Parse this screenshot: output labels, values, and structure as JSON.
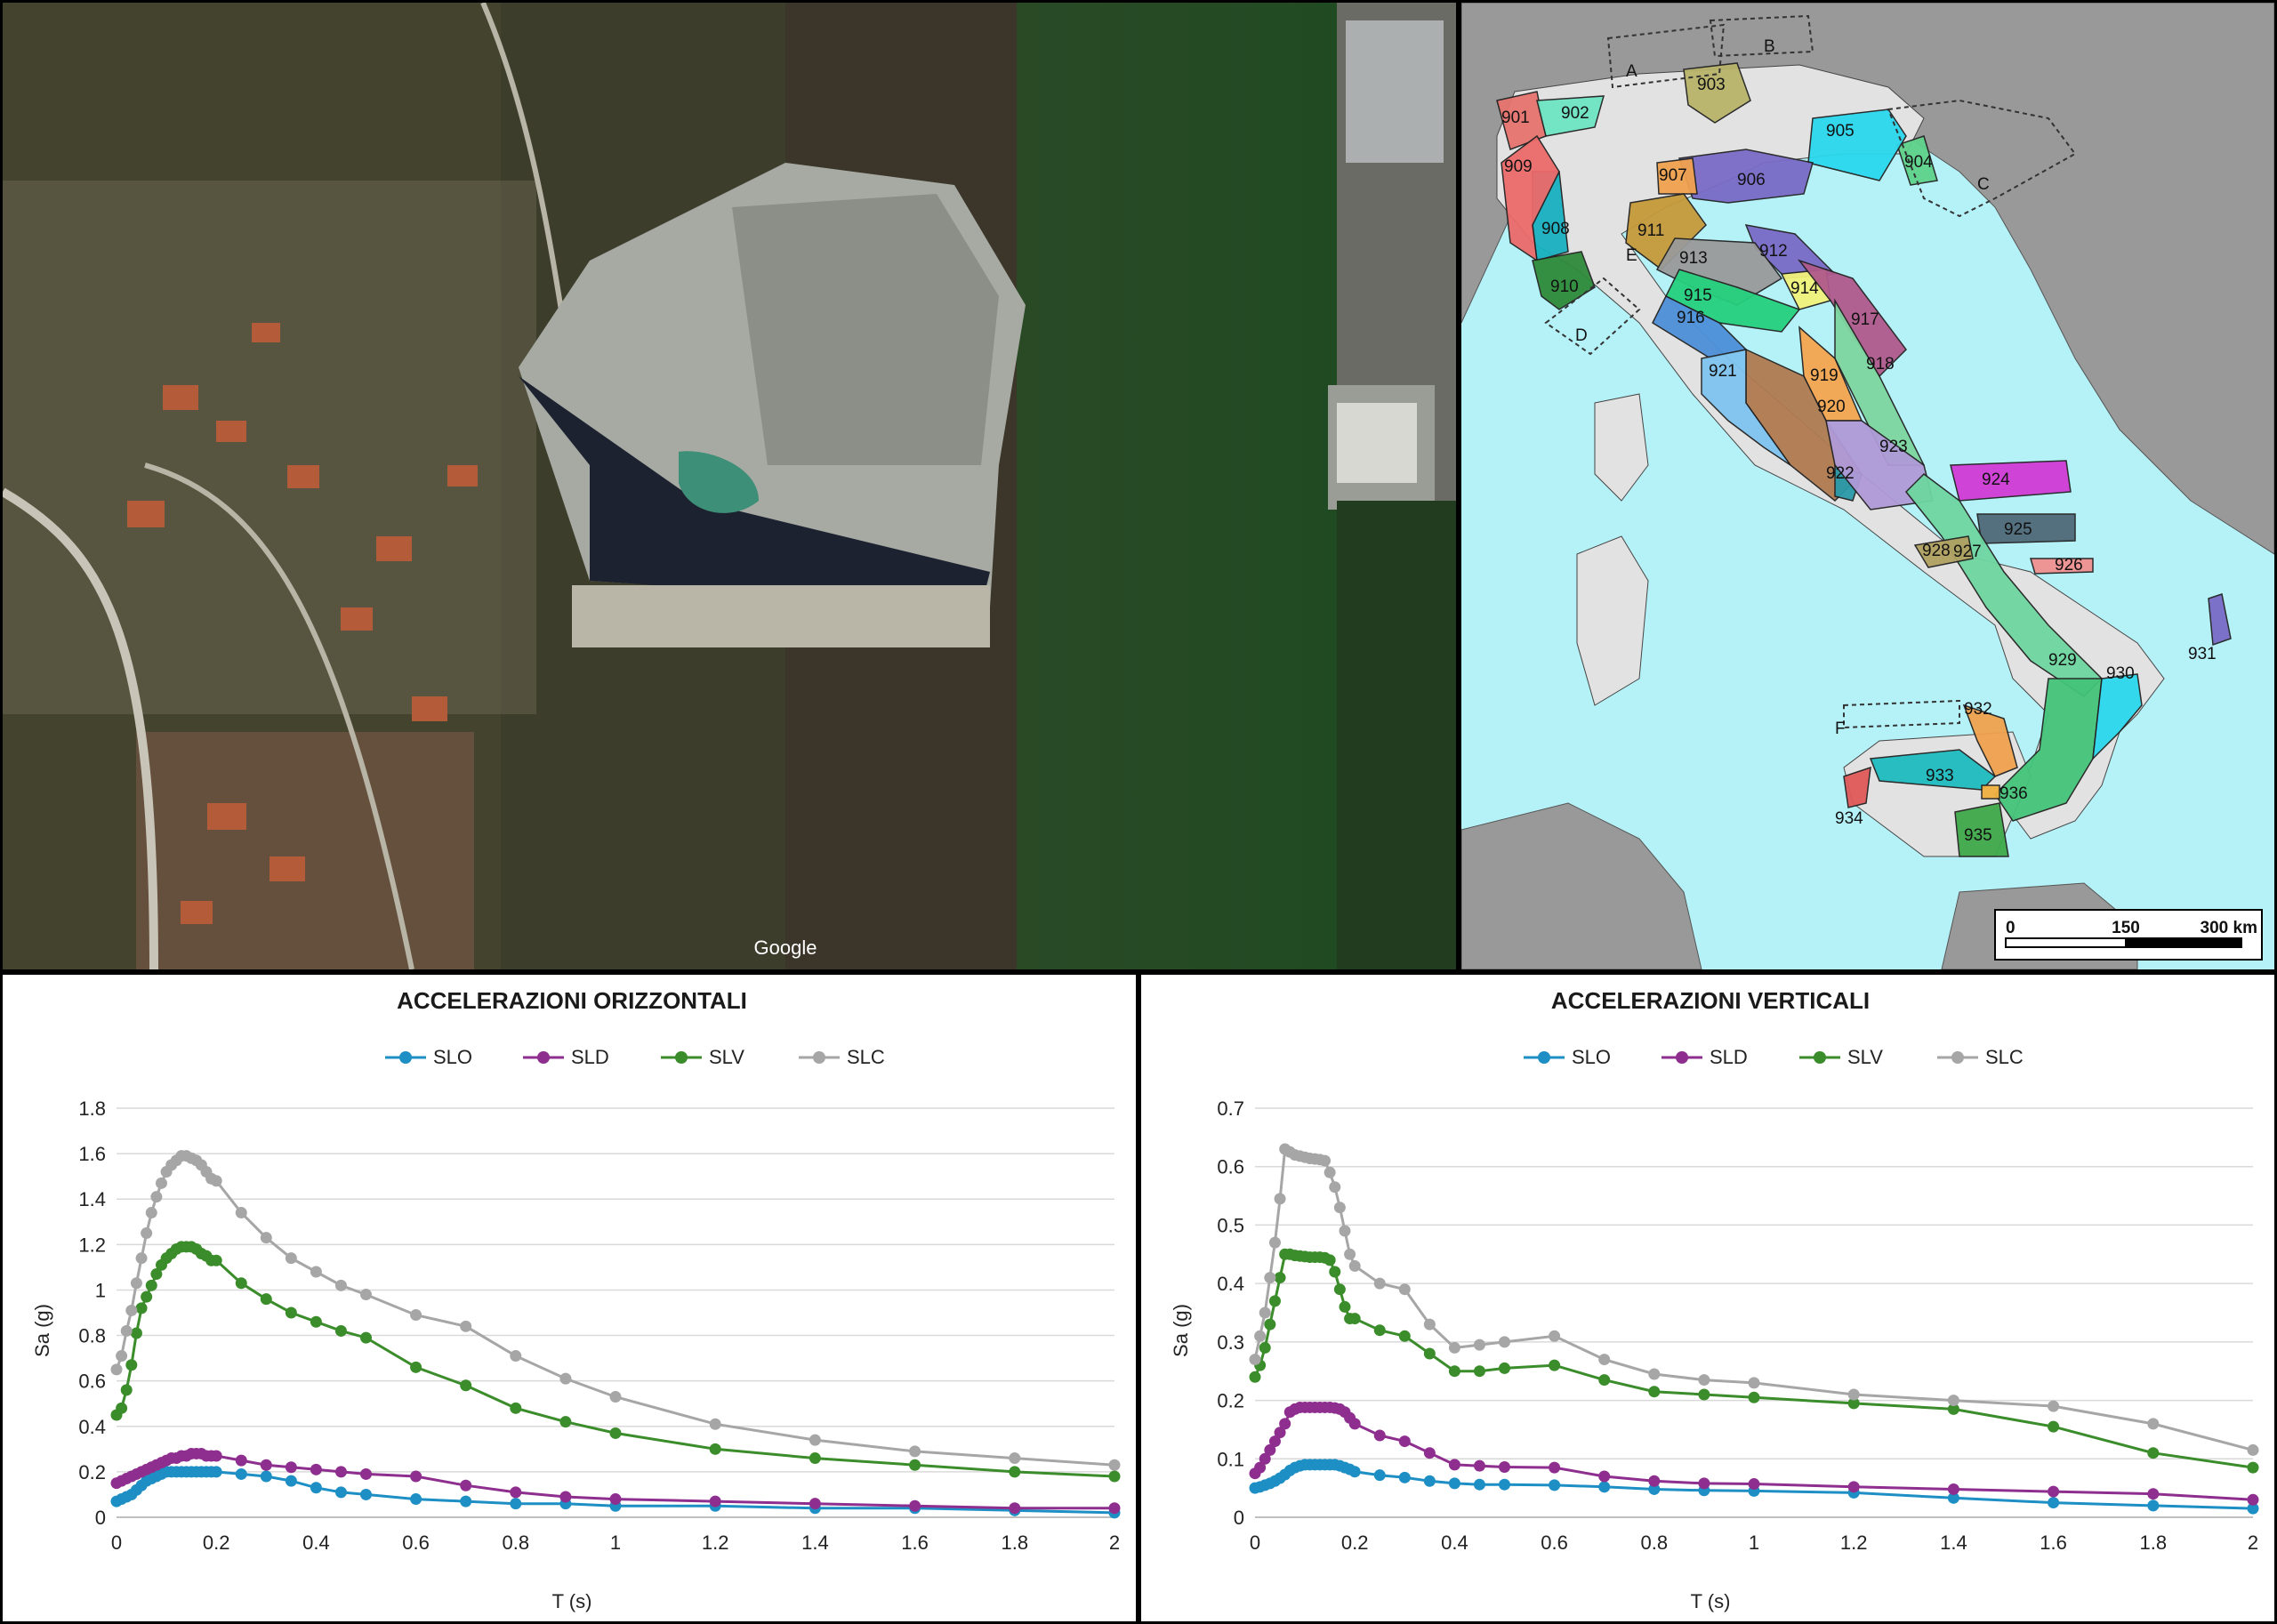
{
  "aerial": {
    "watermark": "Google"
  },
  "map": {
    "zones": [
      "901",
      "902",
      "903",
      "904",
      "905",
      "906",
      "907",
      "908",
      "909",
      "910",
      "911",
      "912",
      "913",
      "914",
      "915",
      "916",
      "917",
      "918",
      "919",
      "920",
      "921",
      "922",
      "923",
      "924",
      "925",
      "926",
      "927",
      "928",
      "929",
      "930",
      "931",
      "932",
      "933",
      "934",
      "935",
      "936"
    ],
    "zone_colors": {
      "901": "#e8746f",
      "902": "#6ee6c4",
      "903": "#b8b46a",
      "904": "#5fd38b",
      "905": "#2ad8ee",
      "906": "#7a6bc6",
      "907": "#f0a24e",
      "908": "#18b0c0",
      "909": "#ec6a6a",
      "910": "#2f8a3a",
      "911": "#c69a3a",
      "912": "#7a6bc6",
      "913": "#9a9a9a",
      "914": "#f2f27a",
      "915": "#26d07e",
      "916": "#4d8fd8",
      "917": "#b05a8c",
      "918": "#7fd6a0",
      "919": "#f5a650",
      "920": "#b07a50",
      "921": "#7ec4f0",
      "922": "#2a9aaa",
      "923": "#b09ad8",
      "924": "#d13ad6",
      "925": "#4f6a78",
      "926": "#f09090",
      "927": "#6fd6a0",
      "928": "#b0a060",
      "929": "#44c47a",
      "930": "#2ad8ee",
      "931": "#7a6bc6",
      "932": "#f0a24e",
      "933": "#1fbcc0",
      "934": "#e05a5a",
      "935": "#3faa4a",
      "936": "#f0b040"
    },
    "letter_labels": [
      "A",
      "B",
      "C",
      "D",
      "E",
      "F"
    ],
    "scale_bar": {
      "labels": [
        "0",
        "150",
        "300 km"
      ]
    },
    "colors": {
      "sea": "#b5f2f8",
      "land_italy": "#e2e2e2",
      "land_other": "#999999"
    }
  },
  "chart_data": [
    {
      "type": "line",
      "title": "ACCELERAZIONI ORIZZONTALI",
      "xlabel": "T (s)",
      "ylabel": "Sa (g)",
      "xlim": [
        0,
        2
      ],
      "ylim": [
        0,
        1.8
      ],
      "xticks": [
        "0",
        "0.2",
        "0.4",
        "0.6",
        "0.8",
        "1",
        "1.2",
        "1.4",
        "1.6",
        "1.8",
        "2"
      ],
      "yticks": [
        "0",
        "0.2",
        "0.4",
        "0.6",
        "0.8",
        "1",
        "1.2",
        "1.4",
        "1.6",
        "1.8"
      ],
      "grid": "horizontal",
      "legend": "top",
      "series": [
        {
          "name": "SLO",
          "color": "#1e8fc4",
          "x": [
            0,
            0.01,
            0.02,
            0.03,
            0.04,
            0.05,
            0.06,
            0.07,
            0.08,
            0.09,
            0.1,
            0.11,
            0.12,
            0.13,
            0.14,
            0.15,
            0.16,
            0.17,
            0.18,
            0.19,
            0.2,
            0.25,
            0.3,
            0.35,
            0.4,
            0.45,
            0.5,
            0.6,
            0.7,
            0.8,
            0.9,
            1,
            1.2,
            1.4,
            1.6,
            1.8,
            2
          ],
          "y": [
            0.07,
            0.08,
            0.09,
            0.1,
            0.12,
            0.14,
            0.16,
            0.17,
            0.18,
            0.19,
            0.2,
            0.2,
            0.2,
            0.2,
            0.2,
            0.2,
            0.2,
            0.2,
            0.2,
            0.2,
            0.2,
            0.19,
            0.18,
            0.16,
            0.13,
            0.11,
            0.1,
            0.08,
            0.07,
            0.06,
            0.06,
            0.05,
            0.05,
            0.04,
            0.04,
            0.03,
            0.02
          ]
        },
        {
          "name": "SLD",
          "color": "#8e2e8e",
          "x": [
            0,
            0.01,
            0.02,
            0.03,
            0.04,
            0.05,
            0.06,
            0.07,
            0.08,
            0.09,
            0.1,
            0.11,
            0.12,
            0.13,
            0.14,
            0.15,
            0.16,
            0.17,
            0.18,
            0.19,
            0.2,
            0.25,
            0.3,
            0.35,
            0.4,
            0.45,
            0.5,
            0.6,
            0.7,
            0.8,
            0.9,
            1,
            1.2,
            1.4,
            1.6,
            1.8,
            2
          ],
          "y": [
            0.15,
            0.16,
            0.17,
            0.18,
            0.19,
            0.2,
            0.21,
            0.22,
            0.23,
            0.24,
            0.25,
            0.26,
            0.26,
            0.27,
            0.27,
            0.28,
            0.28,
            0.28,
            0.27,
            0.27,
            0.27,
            0.25,
            0.23,
            0.22,
            0.21,
            0.2,
            0.19,
            0.18,
            0.14,
            0.11,
            0.09,
            0.08,
            0.07,
            0.06,
            0.05,
            0.04,
            0.04
          ]
        },
        {
          "name": "SLV",
          "color": "#3b8c2a",
          "x": [
            0,
            0.01,
            0.02,
            0.03,
            0.04,
            0.05,
            0.06,
            0.07,
            0.08,
            0.09,
            0.1,
            0.11,
            0.12,
            0.13,
            0.14,
            0.15,
            0.16,
            0.17,
            0.18,
            0.19,
            0.2,
            0.25,
            0.3,
            0.35,
            0.4,
            0.45,
            0.5,
            0.6,
            0.7,
            0.8,
            0.9,
            1,
            1.2,
            1.4,
            1.6,
            1.8,
            2
          ],
          "y": [
            0.45,
            0.48,
            0.56,
            0.67,
            0.81,
            0.92,
            0.97,
            1.02,
            1.07,
            1.11,
            1.14,
            1.16,
            1.18,
            1.19,
            1.19,
            1.19,
            1.18,
            1.16,
            1.15,
            1.13,
            1.13,
            1.03,
            0.96,
            0.9,
            0.86,
            0.82,
            0.79,
            0.66,
            0.58,
            0.48,
            0.42,
            0.37,
            0.3,
            0.26,
            0.23,
            0.2,
            0.18
          ]
        },
        {
          "name": "SLC",
          "color": "#a6a6a6",
          "x": [
            0,
            0.01,
            0.02,
            0.03,
            0.04,
            0.05,
            0.06,
            0.07,
            0.08,
            0.09,
            0.1,
            0.11,
            0.12,
            0.13,
            0.14,
            0.15,
            0.16,
            0.17,
            0.18,
            0.19,
            0.2,
            0.25,
            0.3,
            0.35,
            0.4,
            0.45,
            0.5,
            0.6,
            0.7,
            0.8,
            0.9,
            1,
            1.2,
            1.4,
            1.6,
            1.8,
            2
          ],
          "y": [
            0.65,
            0.71,
            0.82,
            0.91,
            1.03,
            1.14,
            1.25,
            1.34,
            1.41,
            1.47,
            1.52,
            1.55,
            1.57,
            1.59,
            1.59,
            1.58,
            1.57,
            1.55,
            1.52,
            1.49,
            1.48,
            1.34,
            1.23,
            1.14,
            1.08,
            1.02,
            0.98,
            0.89,
            0.84,
            0.71,
            0.61,
            0.53,
            0.41,
            0.34,
            0.29,
            0.26,
            0.23
          ]
        }
      ]
    },
    {
      "type": "line",
      "title": "ACCELERAZIONI VERTICALI",
      "xlabel": "T (s)",
      "ylabel": "Sa (g)",
      "xlim": [
        0,
        2
      ],
      "ylim": [
        0,
        0.7
      ],
      "xticks": [
        "0",
        "0.2",
        "0.4",
        "0.6",
        "0.8",
        "1",
        "1.2",
        "1.4",
        "1.6",
        "1.8",
        "2"
      ],
      "yticks": [
        "0",
        "0.1",
        "0.2",
        "0.3",
        "0.4",
        "0.5",
        "0.6",
        "0.7"
      ],
      "grid": "horizontal",
      "legend": "top",
      "series": [
        {
          "name": "SLO",
          "color": "#1e8fc4",
          "x": [
            0,
            0.01,
            0.02,
            0.03,
            0.04,
            0.05,
            0.06,
            0.07,
            0.08,
            0.09,
            0.1,
            0.11,
            0.12,
            0.13,
            0.14,
            0.15,
            0.16,
            0.17,
            0.18,
            0.19,
            0.2,
            0.25,
            0.3,
            0.35,
            0.4,
            0.45,
            0.5,
            0.6,
            0.7,
            0.8,
            0.9,
            1,
            1.2,
            1.4,
            1.6,
            1.8,
            2
          ],
          "y": [
            0.05,
            0.052,
            0.055,
            0.058,
            0.062,
            0.067,
            0.073,
            0.08,
            0.085,
            0.088,
            0.09,
            0.09,
            0.09,
            0.09,
            0.09,
            0.09,
            0.09,
            0.088,
            0.085,
            0.082,
            0.078,
            0.072,
            0.068,
            0.062,
            0.058,
            0.056,
            0.056,
            0.055,
            0.052,
            0.048,
            0.046,
            0.045,
            0.042,
            0.033,
            0.025,
            0.02,
            0.015
          ]
        },
        {
          "name": "SLD",
          "color": "#8e2e8e",
          "x": [
            0,
            0.01,
            0.02,
            0.03,
            0.04,
            0.05,
            0.06,
            0.07,
            0.08,
            0.09,
            0.1,
            0.11,
            0.12,
            0.13,
            0.14,
            0.15,
            0.16,
            0.17,
            0.18,
            0.19,
            0.2,
            0.25,
            0.3,
            0.35,
            0.4,
            0.45,
            0.5,
            0.6,
            0.7,
            0.8,
            0.9,
            1,
            1.2,
            1.4,
            1.6,
            1.8,
            2
          ],
          "y": [
            0.075,
            0.085,
            0.1,
            0.115,
            0.13,
            0.145,
            0.16,
            0.18,
            0.185,
            0.188,
            0.188,
            0.188,
            0.188,
            0.188,
            0.188,
            0.188,
            0.187,
            0.185,
            0.18,
            0.17,
            0.16,
            0.14,
            0.13,
            0.11,
            0.09,
            0.088,
            0.086,
            0.085,
            0.07,
            0.062,
            0.058,
            0.057,
            0.052,
            0.048,
            0.044,
            0.04,
            0.03
          ]
        },
        {
          "name": "SLV",
          "color": "#3b8c2a",
          "x": [
            0,
            0.01,
            0.02,
            0.03,
            0.04,
            0.05,
            0.06,
            0.07,
            0.08,
            0.09,
            0.1,
            0.11,
            0.12,
            0.13,
            0.14,
            0.15,
            0.16,
            0.17,
            0.18,
            0.19,
            0.2,
            0.25,
            0.3,
            0.35,
            0.4,
            0.45,
            0.5,
            0.6,
            0.7,
            0.8,
            0.9,
            1,
            1.2,
            1.4,
            1.6,
            1.8,
            2
          ],
          "y": [
            0.24,
            0.26,
            0.29,
            0.33,
            0.37,
            0.41,
            0.45,
            0.45,
            0.448,
            0.447,
            0.446,
            0.445,
            0.445,
            0.445,
            0.444,
            0.44,
            0.42,
            0.39,
            0.36,
            0.34,
            0.34,
            0.32,
            0.31,
            0.28,
            0.25,
            0.25,
            0.255,
            0.26,
            0.235,
            0.215,
            0.21,
            0.205,
            0.195,
            0.185,
            0.155,
            0.11,
            0.085
          ]
        },
        {
          "name": "SLC",
          "color": "#a6a6a6",
          "x": [
            0,
            0.01,
            0.02,
            0.03,
            0.04,
            0.05,
            0.06,
            0.07,
            0.08,
            0.09,
            0.1,
            0.11,
            0.12,
            0.13,
            0.14,
            0.15,
            0.16,
            0.17,
            0.18,
            0.19,
            0.2,
            0.25,
            0.3,
            0.35,
            0.4,
            0.45,
            0.5,
            0.6,
            0.7,
            0.8,
            0.9,
            1,
            1.2,
            1.4,
            1.6,
            1.8,
            2
          ],
          "y": [
            0.27,
            0.31,
            0.35,
            0.41,
            0.47,
            0.545,
            0.63,
            0.625,
            0.62,
            0.618,
            0.616,
            0.614,
            0.613,
            0.612,
            0.61,
            0.59,
            0.565,
            0.53,
            0.49,
            0.45,
            0.43,
            0.4,
            0.39,
            0.33,
            0.29,
            0.295,
            0.3,
            0.31,
            0.27,
            0.245,
            0.235,
            0.23,
            0.21,
            0.2,
            0.19,
            0.16,
            0.115
          ]
        }
      ]
    }
  ]
}
